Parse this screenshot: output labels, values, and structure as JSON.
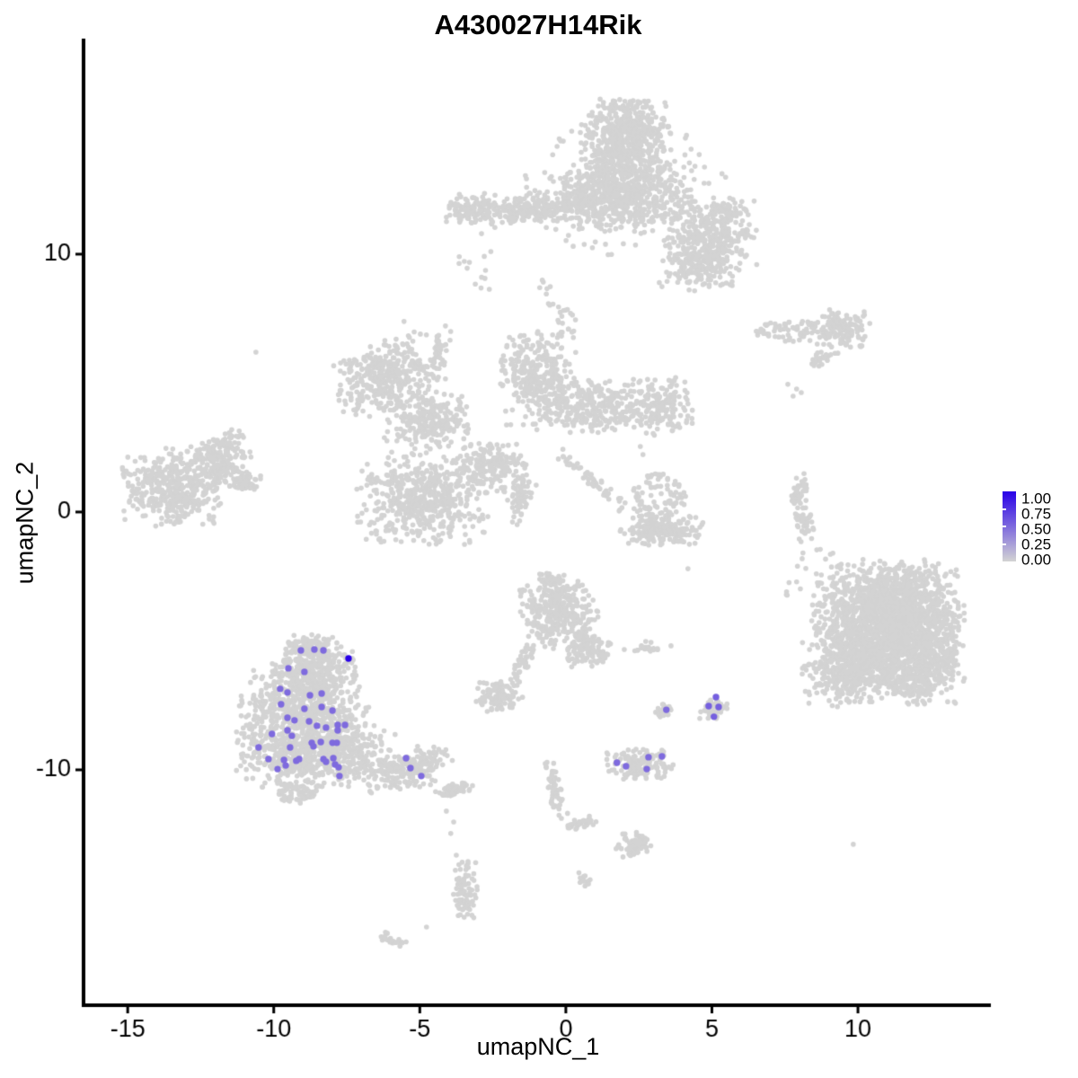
{
  "chart_data": {
    "type": "scatter",
    "title": "A430027H14Rik",
    "xlabel": "umapNC_1",
    "ylabel": "umapNC_2",
    "x_domain": [
      -16.45,
      14.55
    ],
    "y_domain": [
      -19.06,
      18.22
    ],
    "x_ticks": [
      {
        "value": -15,
        "label": "-15"
      },
      {
        "value": -10,
        "label": "-10"
      },
      {
        "value": -5,
        "label": "-5"
      },
      {
        "value": 0,
        "label": "0"
      },
      {
        "value": 5,
        "label": "5"
      },
      {
        "value": 10,
        "label": "10"
      }
    ],
    "y_ticks": [
      {
        "value": 10,
        "label": "10"
      },
      {
        "value": 0,
        "label": "0"
      },
      {
        "value": -10,
        "label": "-10"
      }
    ],
    "grid": false,
    "background_point_color": "#d3d3d3",
    "point_radius_px": {
      "background": 2.8,
      "expressing": 3.7
    },
    "legend": {
      "position": "right",
      "labels": [
        "1.00",
        "0.75",
        "0.50",
        "0.25",
        "0.00"
      ],
      "values": [
        1.0,
        0.75,
        0.5,
        0.25,
        0.0
      ],
      "low_color": "#d3d3d3",
      "high_color": "#2800e8"
    },
    "seed": 12,
    "background_clusters": [
      {
        "c": "top-island-head",
        "x": 2.06,
        "y": 14.53,
        "rx": 1.48,
        "ry": 1.46,
        "rot": 0,
        "n": 550,
        "mode": "g"
      },
      {
        "c": "top-island-band",
        "x": 1.85,
        "y": 12.26,
        "rx": 2.46,
        "ry": 1.32,
        "rot": 0,
        "n": 700,
        "mode": "g"
      },
      {
        "c": "top-island-left-arm",
        "x": -1.38,
        "y": 11.74,
        "rx": 2.15,
        "ry": 0.59,
        "rot": -5,
        "n": 250,
        "mode": "g"
      },
      {
        "c": "top-island-left-tip",
        "x": -3.29,
        "y": 11.78,
        "rx": 0.86,
        "ry": 0.56,
        "rot": 0,
        "n": 80,
        "mode": "g"
      },
      {
        "c": "top-island-right-lobe",
        "x": 5.01,
        "y": 10.73,
        "rx": 1.48,
        "ry": 1.32,
        "rot": 0,
        "n": 320,
        "mode": "g"
      },
      {
        "c": "top-island-right-foot",
        "x": 4.55,
        "y": 9.34,
        "rx": 1.29,
        "ry": 0.84,
        "rot": 0,
        "n": 160,
        "mode": "g"
      },
      {
        "c": "top-island-halo",
        "x": 2.0,
        "y": 12.54,
        "rx": 3.54,
        "ry": 2.61,
        "rot": 0,
        "n": 110,
        "mode": "u"
      },
      {
        "c": "top-island-hook",
        "x": 5.6,
        "y": 11.74,
        "rx": 0.55,
        "ry": 0.42,
        "rot": -30,
        "n": 40,
        "mode": "g"
      },
      {
        "c": "top-island-drip",
        "x": -0.25,
        "y": 7.77,
        "rx": 0.35,
        "ry": 1.65,
        "rot": -35,
        "n": 26,
        "mode": "u"
      },
      {
        "c": "top-island-left-drip",
        "x": -3.08,
        "y": 10.1,
        "rx": 0.6,
        "ry": 1.74,
        "rot": 0,
        "n": 14,
        "mode": "u"
      },
      {
        "c": "mid-star-nw-arm",
        "x": -6.15,
        "y": 5.23,
        "rx": 1.78,
        "ry": 1.32,
        "rot": -25,
        "n": 380,
        "mode": "g"
      },
      {
        "c": "mid-star-west",
        "x": -4.67,
        "y": 3.55,
        "rx": 1.48,
        "ry": 1.05,
        "rot": 0,
        "n": 240,
        "mode": "g"
      },
      {
        "c": "mid-star-north",
        "x": -0.92,
        "y": 5.23,
        "rx": 1.29,
        "ry": 1.81,
        "rot": 0,
        "n": 330,
        "mode": "g"
      },
      {
        "c": "mid-star-east-arm",
        "x": 0.98,
        "y": 4.11,
        "rx": 1.91,
        "ry": 1.05,
        "rot": 0,
        "n": 280,
        "mode": "g"
      },
      {
        "c": "mid-star-east-lobe",
        "x": 3.17,
        "y": 4.11,
        "rx": 1.17,
        "ry": 1.11,
        "rot": 0,
        "n": 170,
        "mode": "g"
      },
      {
        "c": "mid-star-sw-lobe",
        "x": -4.92,
        "y": 0.52,
        "rx": 2.15,
        "ry": 1.74,
        "rot": 0,
        "n": 520,
        "mode": "g"
      },
      {
        "c": "mid-star-center",
        "x": -2.61,
        "y": 1.74,
        "rx": 1.29,
        "ry": 1.05,
        "rot": 0,
        "n": 200,
        "mode": "g"
      },
      {
        "c": "mid-star-south-streak",
        "x": -1.54,
        "y": 0.63,
        "rx": 0.37,
        "ry": 1.05,
        "rot": 20,
        "n": 60,
        "mode": "g"
      },
      {
        "c": "mid-star-se-tail",
        "x": 0.92,
        "y": 1.18,
        "rx": 1.69,
        "ry": 0.28,
        "rot": 40,
        "n": 55,
        "mode": "g"
      },
      {
        "c": "mid-star-top-streak",
        "x": -4.31,
        "y": 6.27,
        "rx": 0.31,
        "ry": 0.98,
        "rot": 12,
        "n": 40,
        "mode": "g"
      },
      {
        "c": "far-left-body",
        "x": -13.38,
        "y": 0.98,
        "rx": 1.78,
        "ry": 1.46,
        "rot": 0,
        "n": 430,
        "mode": "g"
      },
      {
        "c": "far-left-bump",
        "x": -11.84,
        "y": 1.92,
        "rx": 1.08,
        "ry": 0.87,
        "rot": 0,
        "n": 150,
        "mode": "g"
      },
      {
        "c": "far-left-arm",
        "x": -11.69,
        "y": 2.61,
        "rx": 0.68,
        "ry": 0.42,
        "rot": -30,
        "n": 50,
        "mode": "g"
      },
      {
        "c": "far-left-point",
        "x": -11.07,
        "y": 1.15,
        "rx": 0.68,
        "ry": 0.35,
        "rot": 0,
        "n": 50,
        "mode": "g"
      },
      {
        "c": "right-band-blob",
        "x": 9.47,
        "y": 7.11,
        "rx": 0.92,
        "ry": 0.7,
        "rot": 0,
        "n": 150,
        "mode": "g"
      },
      {
        "c": "right-band-streak",
        "x": 7.78,
        "y": 7.0,
        "rx": 1.29,
        "ry": 0.42,
        "rot": 0,
        "n": 70,
        "mode": "u"
      },
      {
        "c": "right-band-dash",
        "x": 8.79,
        "y": 6.03,
        "rx": 0.49,
        "ry": 0.24,
        "rot": -35,
        "n": 22,
        "mode": "g"
      },
      {
        "c": "right-ribbon-upper",
        "x": 7.99,
        "y": 0.7,
        "rx": 0.28,
        "ry": 0.77,
        "rot": 10,
        "n": 45,
        "mode": "g"
      },
      {
        "c": "right-ribbon-lower",
        "x": 8.21,
        "y": -0.52,
        "rx": 0.28,
        "ry": 0.7,
        "rot": -10,
        "n": 40,
        "mode": "g"
      },
      {
        "c": "right-large-core",
        "x": 11.07,
        "y": -4.53,
        "rx": 2.46,
        "ry": 2.44,
        "rot": 0,
        "n": 1500,
        "mode": "g"
      },
      {
        "c": "right-large-upper",
        "x": 11.38,
        "y": -3.83,
        "rx": 2.0,
        "ry": 1.92,
        "rot": 0,
        "n": 600,
        "mode": "g"
      },
      {
        "c": "right-large-sw",
        "x": 9.84,
        "y": -6.1,
        "rx": 1.69,
        "ry": 1.39,
        "rot": 0,
        "n": 400,
        "mode": "g"
      },
      {
        "c": "right-large-se",
        "x": 12.15,
        "y": -6.1,
        "rx": 1.23,
        "ry": 1.32,
        "rot": 0,
        "n": 250,
        "mode": "g"
      },
      {
        "c": "right-large-nw-scatter",
        "x": 8.76,
        "y": -2.96,
        "rx": 1.23,
        "ry": 1.67,
        "rot": 0,
        "n": 45,
        "mode": "u"
      },
      {
        "c": "lower-left-top",
        "x": -8.61,
        "y": -5.99,
        "rx": 1.38,
        "ry": 0.98,
        "rot": 0,
        "n": 300,
        "mode": "g"
      },
      {
        "c": "lower-left-mid",
        "x": -8.92,
        "y": -7.67,
        "rx": 2.15,
        "ry": 1.46,
        "rot": 0,
        "n": 550,
        "mode": "g"
      },
      {
        "c": "lower-left-base",
        "x": -8.55,
        "y": -9.41,
        "rx": 2.61,
        "ry": 1.22,
        "rot": 0,
        "n": 600,
        "mode": "g"
      },
      {
        "c": "lower-left-tail",
        "x": -5.38,
        "y": -9.93,
        "rx": 1.48,
        "ry": 0.77,
        "rot": -12,
        "n": 220,
        "mode": "g"
      },
      {
        "c": "lower-left-tail-tip",
        "x": -3.84,
        "y": -10.8,
        "rx": 0.68,
        "ry": 0.35,
        "rot": -20,
        "n": 50,
        "mode": "g"
      },
      {
        "c": "lower-left-south-bump",
        "x": -9.23,
        "y": -10.87,
        "rx": 0.86,
        "ry": 0.42,
        "rot": 0,
        "n": 70,
        "mode": "g"
      },
      {
        "c": "lower-left-crown",
        "x": -8.61,
        "y": -5.09,
        "rx": 0.92,
        "ry": 0.35,
        "rot": 0,
        "n": 60,
        "mode": "g"
      },
      {
        "c": "center-lower-body",
        "x": -0.25,
        "y": -3.9,
        "rx": 1.29,
        "ry": 1.39,
        "rot": 0,
        "n": 330,
        "mode": "g"
      },
      {
        "c": "center-lower-arm",
        "x": 0.77,
        "y": -5.3,
        "rx": 0.8,
        "ry": 0.7,
        "rot": 0,
        "n": 110,
        "mode": "g"
      },
      {
        "c": "center-lower-neck",
        "x": -0.55,
        "y": -2.72,
        "rx": 0.43,
        "ry": 0.35,
        "rot": 0,
        "n": 30,
        "mode": "g"
      },
      {
        "c": "center-lower-streak",
        "x": -1.45,
        "y": -5.75,
        "rx": 0.25,
        "ry": 0.98,
        "rot": 25,
        "n": 45,
        "mode": "g"
      },
      {
        "c": "center-lower-satellite",
        "x": -2.31,
        "y": -7.14,
        "rx": 0.8,
        "ry": 0.63,
        "rot": 0,
        "n": 110,
        "mode": "g"
      },
      {
        "c": "bottom-crescent",
        "x": -3.44,
        "y": -14.7,
        "rx": 0.4,
        "ry": 1.11,
        "rot": 0,
        "n": 85,
        "mode": "g"
      },
      {
        "c": "bottom-diagonal-streak",
        "x": -0.4,
        "y": -10.73,
        "rx": 0.25,
        "ry": 1.22,
        "rot": -15,
        "n": 55,
        "mode": "g"
      },
      {
        "c": "bottom-arm",
        "x": 0.55,
        "y": -12.09,
        "rx": 0.62,
        "ry": 0.28,
        "rot": -10,
        "n": 30,
        "mode": "g"
      },
      {
        "c": "bottom-blob",
        "x": 2.34,
        "y": -12.93,
        "rx": 0.68,
        "ry": 0.49,
        "rot": 0,
        "n": 65,
        "mode": "g"
      },
      {
        "c": "bottom-dot-clump",
        "x": 0.65,
        "y": -14.25,
        "rx": 0.25,
        "ry": 0.28,
        "rot": 0,
        "n": 14,
        "mode": "g"
      },
      {
        "c": "bottom-left-arc",
        "x": -5.93,
        "y": -16.59,
        "rx": 0.62,
        "ry": 0.24,
        "rot": 15,
        "n": 22,
        "mode": "g"
      },
      {
        "c": "mid-right-crescent-base",
        "x": 3.29,
        "y": -0.7,
        "rx": 1.38,
        "ry": 0.56,
        "rot": 0,
        "n": 200,
        "mode": "g"
      },
      {
        "c": "mid-right-crescent-scatter",
        "x": 3.14,
        "y": 0.59,
        "rx": 0.98,
        "ry": 0.91,
        "rot": 0,
        "n": 90,
        "mode": "u"
      },
      {
        "c": "small-cluster-i",
        "x": 3.38,
        "y": -7.77,
        "rx": 0.31,
        "ry": 0.31,
        "rot": 0,
        "n": 26,
        "mode": "g"
      },
      {
        "c": "small-cluster-j",
        "x": 5.04,
        "y": -7.6,
        "rx": 0.46,
        "ry": 0.46,
        "rot": 0,
        "n": 55,
        "mode": "g"
      },
      {
        "c": "small-cluster-k",
        "x": 2.52,
        "y": -9.79,
        "rx": 1.11,
        "ry": 0.59,
        "rot": 0,
        "n": 160,
        "mode": "g"
      },
      {
        "c": "small-streak-l",
        "x": 2.74,
        "y": -5.26,
        "rx": 0.52,
        "ry": 0.24,
        "rot": 0,
        "n": 24,
        "mode": "g"
      }
    ],
    "background_singles": [
      [
        -5.54,
        7.39
      ],
      [
        -4.98,
        6.9
      ],
      [
        7.6,
        4.95
      ],
      [
        7.9,
        4.77
      ],
      [
        7.78,
        4.49
      ],
      [
        8.06,
        4.63
      ],
      [
        7.99,
        -1.05
      ],
      [
        8.09,
        -1.81
      ],
      [
        -4.09,
        -11.6
      ],
      [
        -3.84,
        -12.02
      ],
      [
        -3.94,
        -12.47
      ],
      [
        -3.75,
        -13.31
      ],
      [
        -4.77,
        -16.1
      ],
      [
        2.55,
        2.54
      ],
      [
        2.64,
        2.23
      ],
      [
        4.18,
        -2.2
      ],
      [
        2.0,
        -5.33
      ],
      [
        3.6,
        -5.19
      ],
      [
        -10.61,
        6.2
      ],
      [
        9.84,
        -12.89
      ],
      [
        -2.77,
        9.06
      ],
      [
        -2.62,
        8.64
      ]
    ],
    "expressing_points": [
      {
        "x": -9.07,
        "y": -5.37,
        "value": 0.5
      },
      {
        "x": -8.61,
        "y": -5.33,
        "value": 0.5
      },
      {
        "x": -8.3,
        "y": -5.37,
        "value": 0.5
      },
      {
        "x": -7.44,
        "y": -5.68,
        "value": 1.0
      },
      {
        "x": -9.5,
        "y": -6.06,
        "value": 0.5
      },
      {
        "x": -8.95,
        "y": -6.2,
        "value": 0.5
      },
      {
        "x": -9.78,
        "y": -6.86,
        "value": 0.5
      },
      {
        "x": -9.53,
        "y": -7.0,
        "value": 0.5
      },
      {
        "x": -8.36,
        "y": -7.04,
        "value": 0.5
      },
      {
        "x": -8.76,
        "y": -7.11,
        "value": 0.5
      },
      {
        "x": -9.75,
        "y": -7.46,
        "value": 0.5
      },
      {
        "x": -8.36,
        "y": -7.56,
        "value": 0.5
      },
      {
        "x": -7.99,
        "y": -7.7,
        "value": 0.5
      },
      {
        "x": -8.95,
        "y": -7.63,
        "value": 0.5
      },
      {
        "x": -9.53,
        "y": -7.98,
        "value": 0.5
      },
      {
        "x": -9.29,
        "y": -8.08,
        "value": 0.5
      },
      {
        "x": -8.79,
        "y": -8.12,
        "value": 0.5
      },
      {
        "x": -8.52,
        "y": -8.29,
        "value": 0.5
      },
      {
        "x": -8.21,
        "y": -8.36,
        "value": 0.5
      },
      {
        "x": -7.81,
        "y": -8.26,
        "value": 0.5
      },
      {
        "x": -7.56,
        "y": -8.26,
        "value": 0.5
      },
      {
        "x": -7.81,
        "y": -8.47,
        "value": 0.5
      },
      {
        "x": -10.06,
        "y": -8.61,
        "value": 0.5
      },
      {
        "x": -9.53,
        "y": -8.47,
        "value": 0.5
      },
      {
        "x": -9.38,
        "y": -8.68,
        "value": 0.5
      },
      {
        "x": -8.7,
        "y": -8.95,
        "value": 0.5
      },
      {
        "x": -8.39,
        "y": -8.92,
        "value": 0.5
      },
      {
        "x": -8.64,
        "y": -9.09,
        "value": 0.5
      },
      {
        "x": -7.99,
        "y": -8.95,
        "value": 0.5
      },
      {
        "x": -7.84,
        "y": -8.95,
        "value": 0.5
      },
      {
        "x": -10.52,
        "y": -9.13,
        "value": 0.5
      },
      {
        "x": -9.44,
        "y": -9.13,
        "value": 0.5
      },
      {
        "x": -10.18,
        "y": -9.58,
        "value": 0.5
      },
      {
        "x": -9.65,
        "y": -9.62,
        "value": 0.5
      },
      {
        "x": -9.23,
        "y": -9.65,
        "value": 0.5
      },
      {
        "x": -9.13,
        "y": -9.58,
        "value": 0.5
      },
      {
        "x": -8.3,
        "y": -9.58,
        "value": 0.5
      },
      {
        "x": -7.96,
        "y": -9.55,
        "value": 0.5
      },
      {
        "x": -8.21,
        "y": -9.69,
        "value": 0.5
      },
      {
        "x": -7.9,
        "y": -9.79,
        "value": 0.5
      },
      {
        "x": -9.87,
        "y": -9.97,
        "value": 0.5
      },
      {
        "x": -9.59,
        "y": -9.83,
        "value": 0.5
      },
      {
        "x": -7.78,
        "y": -9.9,
        "value": 0.5
      },
      {
        "x": -7.75,
        "y": -10.24,
        "value": 0.5
      },
      {
        "x": -5.47,
        "y": -9.55,
        "value": 0.5
      },
      {
        "x": -5.32,
        "y": -9.93,
        "value": 0.5
      },
      {
        "x": -4.95,
        "y": -10.24,
        "value": 0.5
      },
      {
        "x": 5.14,
        "y": -7.18,
        "value": 0.55
      },
      {
        "x": 4.89,
        "y": -7.53,
        "value": 0.55
      },
      {
        "x": 5.23,
        "y": -7.56,
        "value": 0.55
      },
      {
        "x": 5.07,
        "y": -7.94,
        "value": 0.55
      },
      {
        "x": 3.44,
        "y": -7.67,
        "value": 0.5
      },
      {
        "x": 1.75,
        "y": -9.72,
        "value": 0.5
      },
      {
        "x": 2.06,
        "y": -9.86,
        "value": 0.5
      },
      {
        "x": 2.83,
        "y": -9.51,
        "value": 0.5
      },
      {
        "x": 2.77,
        "y": -9.97,
        "value": 0.5
      },
      {
        "x": 3.29,
        "y": -9.48,
        "value": 0.5
      }
    ]
  }
}
